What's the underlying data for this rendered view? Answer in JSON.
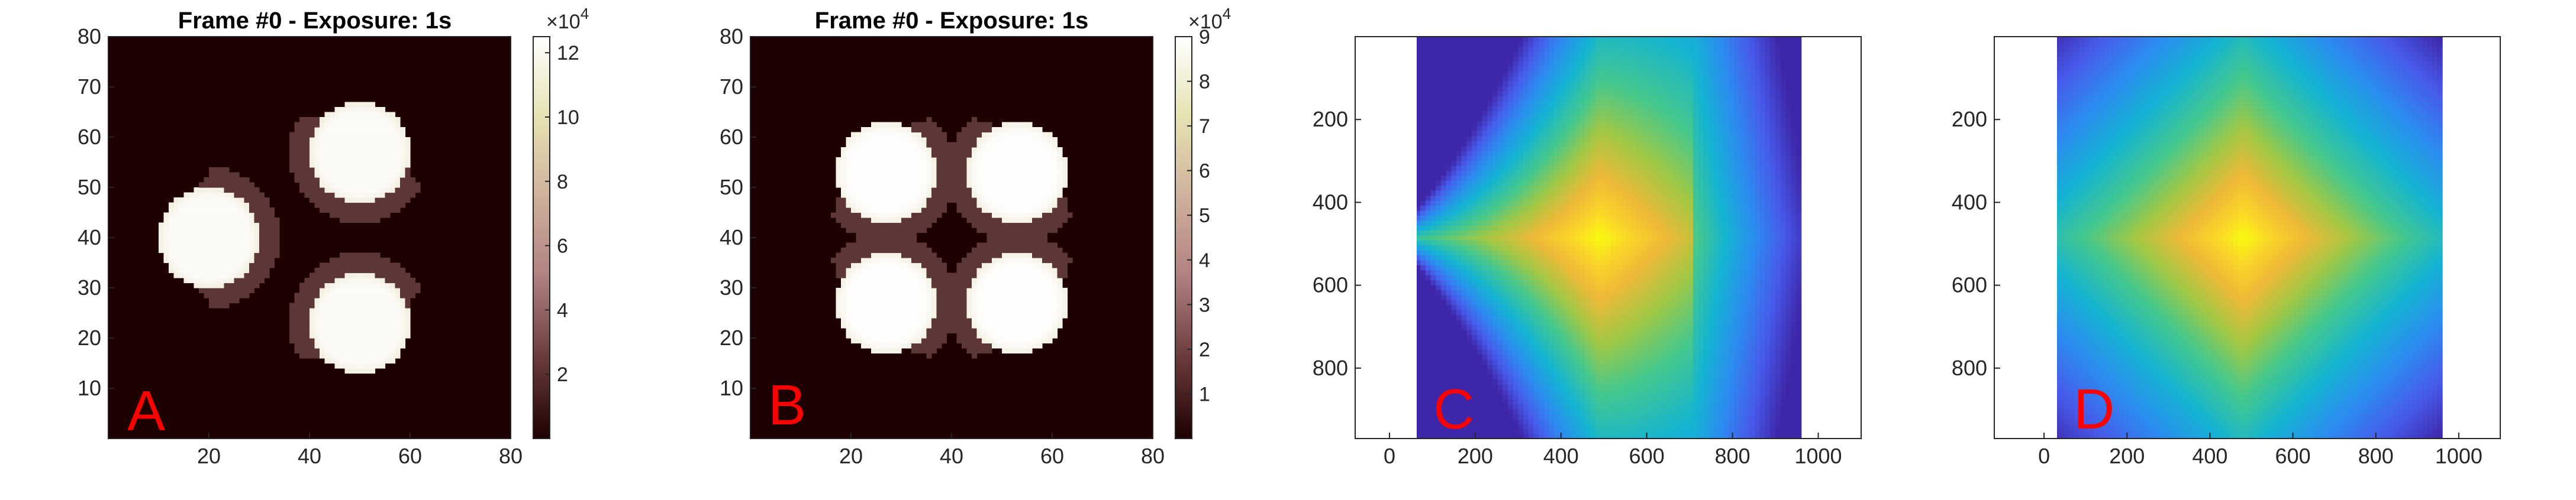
{
  "figure": {
    "background": "#ffffff",
    "panel_label_color": "#ff0000",
    "panels": [
      {
        "letter": "A",
        "title": "Frame #0 - Exposure: 1s",
        "colorbar_exponent_base": "×10",
        "colorbar_exponent_power": "4"
      },
      {
        "letter": "B",
        "title": "Frame #0 - Exposure: 1s",
        "colorbar_exponent_base": "×10",
        "colorbar_exponent_power": "4"
      },
      {
        "letter": "C"
      },
      {
        "letter": "D"
      }
    ]
  },
  "chart_data": [
    {
      "type": "heatmap",
      "panel": "A",
      "title": "Frame #0 - Exposure: 1s",
      "colormap": "pink (dark red to white)",
      "grid": 80,
      "xlim": [
        0,
        80
      ],
      "ylim": [
        0,
        80
      ],
      "x_ticks": [
        20,
        40,
        60,
        80
      ],
      "y_ticks": [
        10,
        20,
        30,
        40,
        50,
        60,
        70,
        80
      ],
      "colorbar": {
        "min": 0,
        "max": 12.5,
        "ticks": [
          2,
          4,
          6,
          8,
          10,
          12
        ],
        "multiplier": "×10^4"
      },
      "background_value": 0.2,
      "halo_value": 2.5,
      "spots": [
        {
          "x": 50,
          "y": 57,
          "radius": 10,
          "value": 12.2
        },
        {
          "x": 20,
          "y": 40,
          "radius": 10,
          "value": 12.2
        },
        {
          "x": 50,
          "y": 23,
          "radius": 10,
          "value": 12.2
        }
      ]
    },
    {
      "type": "heatmap",
      "panel": "B",
      "title": "Frame #0 - Exposure: 1s",
      "colormap": "pink (dark red to white)",
      "grid": 80,
      "xlim": [
        0,
        80
      ],
      "ylim": [
        0,
        80
      ],
      "x_ticks": [
        20,
        40,
        60,
        80
      ],
      "y_ticks": [
        10,
        20,
        30,
        40,
        50,
        60,
        70,
        80
      ],
      "colorbar": {
        "min": 0,
        "max": 9,
        "ticks": [
          1,
          2,
          3,
          4,
          5,
          6,
          7,
          8,
          9
        ],
        "multiplier": "×10^4"
      },
      "background_value": 0.15,
      "halo_value": 1.8,
      "spots": [
        {
          "x": 27,
          "y": 53,
          "radius": 10,
          "value": 8.9
        },
        {
          "x": 53,
          "y": 53,
          "radius": 10,
          "value": 8.9
        },
        {
          "x": 27,
          "y": 27,
          "radius": 10,
          "value": 8.9
        },
        {
          "x": 53,
          "y": 27,
          "radius": 10,
          "value": 8.9
        }
      ]
    },
    {
      "type": "heatmap",
      "panel": "C",
      "colormap": "parula",
      "shape": "triangle",
      "xlim": [
        -80,
        1100
      ],
      "ylim": [
        0,
        970
      ],
      "y_reversed": true,
      "data_extent_x": [
        0,
        960
      ],
      "data_extent_y": [
        0,
        970
      ],
      "x_ticks": [
        0,
        200,
        400,
        600,
        800,
        1000
      ],
      "y_ticks": [
        200,
        400,
        600,
        800
      ],
      "peak": {
        "x": 490,
        "y": 485
      },
      "vertices": [
        {
          "x": 710,
          "y": 0
        },
        {
          "x": 710,
          "y": 970
        },
        {
          "x": 0,
          "y": 485
        }
      ]
    },
    {
      "type": "heatmap",
      "panel": "D",
      "colormap": "parula",
      "shape": "diamond",
      "xlim": [
        -120,
        1100
      ],
      "ylim": [
        0,
        970
      ],
      "y_reversed": true,
      "data_extent_x": [
        0,
        960
      ],
      "data_extent_y": [
        0,
        970
      ],
      "x_ticks": [
        0,
        200,
        400,
        600,
        800,
        1000
      ],
      "y_ticks": [
        200,
        400,
        600,
        800
      ],
      "peak": {
        "x": 480,
        "y": 485
      }
    }
  ]
}
